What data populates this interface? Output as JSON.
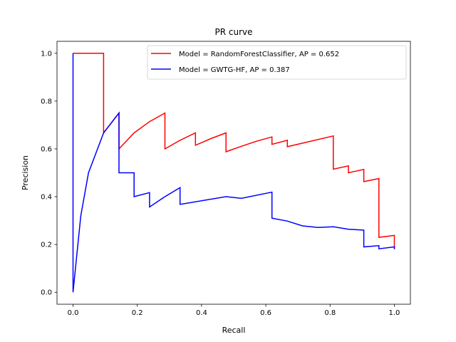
{
  "chart_data": {
    "type": "line",
    "title": "PR curve",
    "xlabel": "Recall",
    "ylabel": "Precision",
    "xlim": [
      -0.05,
      1.05
    ],
    "ylim": [
      -0.05,
      1.05
    ],
    "xticks": [
      0.0,
      0.2,
      0.4,
      0.6,
      0.8,
      1.0
    ],
    "xtick_labels": [
      "0.0",
      "0.2",
      "0.4",
      "0.6",
      "0.8",
      "1.0"
    ],
    "yticks": [
      0.0,
      0.2,
      0.4,
      0.6,
      0.8,
      1.0
    ],
    "ytick_labels": [
      "0.0",
      "0.2",
      "0.4",
      "0.6",
      "0.8",
      "1.0"
    ],
    "grid": false,
    "legend_position": "top-right",
    "series": [
      {
        "name": "Model = RandomForestClassifier, AP = 0.652",
        "color": "#ff0000",
        "points": [
          [
            0.0,
            1.0
          ],
          [
            0.095,
            1.0
          ],
          [
            0.095,
            0.667
          ],
          [
            0.143,
            0.75
          ],
          [
            0.143,
            0.6
          ],
          [
            0.19,
            0.667
          ],
          [
            0.238,
            0.714
          ],
          [
            0.286,
            0.75
          ],
          [
            0.286,
            0.6
          ],
          [
            0.333,
            0.636
          ],
          [
            0.381,
            0.667
          ],
          [
            0.381,
            0.615
          ],
          [
            0.429,
            0.643
          ],
          [
            0.476,
            0.667
          ],
          [
            0.476,
            0.588
          ],
          [
            0.524,
            0.611
          ],
          [
            0.571,
            0.632
          ],
          [
            0.619,
            0.65
          ],
          [
            0.619,
            0.619
          ],
          [
            0.667,
            0.636
          ],
          [
            0.667,
            0.609
          ],
          [
            0.81,
            0.654
          ],
          [
            0.81,
            0.515
          ],
          [
            0.857,
            0.529
          ],
          [
            0.857,
            0.5
          ],
          [
            0.905,
            0.514
          ],
          [
            0.905,
            0.463
          ],
          [
            0.952,
            0.476
          ],
          [
            0.952,
            0.23
          ],
          [
            1.0,
            0.238
          ],
          [
            1.0,
            0.18
          ]
        ]
      },
      {
        "name": "Model = GWTG-HF, AP = 0.387",
        "color": "#0000ff",
        "points": [
          [
            0.0,
            1.0
          ],
          [
            0.0,
            0.0
          ],
          [
            0.024,
            0.32
          ],
          [
            0.048,
            0.5
          ],
          [
            0.095,
            0.667
          ],
          [
            0.143,
            0.75
          ],
          [
            0.143,
            0.5
          ],
          [
            0.19,
            0.5
          ],
          [
            0.19,
            0.4
          ],
          [
            0.238,
            0.417
          ],
          [
            0.238,
            0.357
          ],
          [
            0.286,
            0.4
          ],
          [
            0.333,
            0.438
          ],
          [
            0.333,
            0.368
          ],
          [
            0.476,
            0.4
          ],
          [
            0.524,
            0.393
          ],
          [
            0.619,
            0.419
          ],
          [
            0.619,
            0.31
          ],
          [
            0.667,
            0.298
          ],
          [
            0.714,
            0.278
          ],
          [
            0.762,
            0.271
          ],
          [
            0.81,
            0.274
          ],
          [
            0.857,
            0.264
          ],
          [
            0.905,
            0.26
          ],
          [
            0.905,
            0.19
          ],
          [
            0.952,
            0.195
          ],
          [
            0.952,
            0.182
          ],
          [
            1.0,
            0.19
          ],
          [
            1.0,
            0.18
          ]
        ]
      }
    ]
  }
}
